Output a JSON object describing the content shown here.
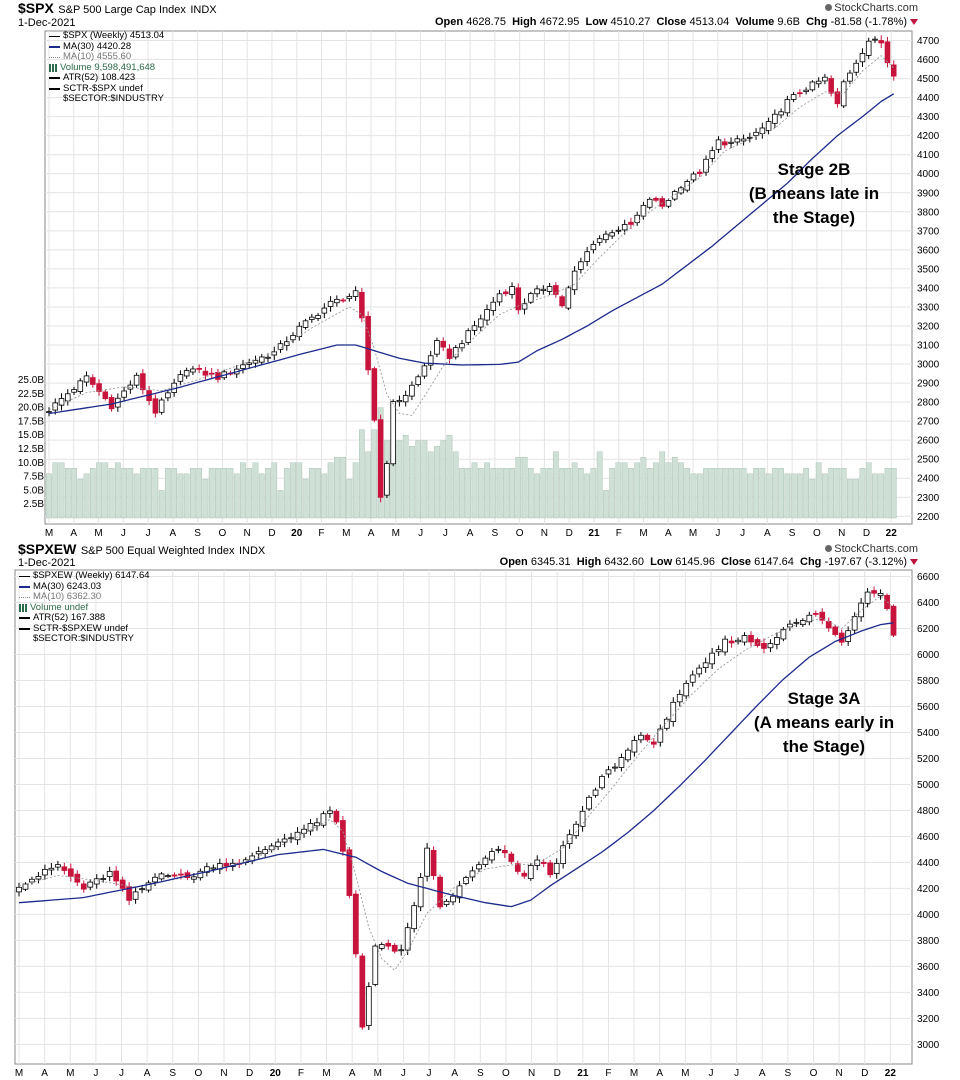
{
  "charts": [
    {
      "ticker": "$SPX",
      "name": "S&P 500 Large Cap Index",
      "exchange": "INDX",
      "date": "1-Dec-2021",
      "brand": "StockCharts.com",
      "ohlc": {
        "open_label": "Open",
        "open": "4628.75",
        "high_label": "High",
        "high": "4672.95",
        "low_label": "Low",
        "low": "4510.27",
        "close_label": "Close",
        "close": "4513.04",
        "volume_label": "Volume",
        "volume": "9.6B",
        "chg_label": "Chg",
        "chg": "-81.58 (-1.78%)"
      },
      "legend": {
        "title": "$SPX (Weekly) 4513.04",
        "ma30": "MA(30) 4420.28",
        "ma10": "MA(10) 4555.60",
        "volume": "Volume 9,598,491,648",
        "atr": "ATR(52) 108.423",
        "sctr": "SCTR-$SPX undef",
        "sector": "$SECTOR:$INDUSTRY"
      },
      "annotation": [
        "Stage 2B",
        "(B means late in",
        "the Stage)"
      ]
    },
    {
      "ticker": "$SPXEW",
      "name": "S&P 500 Equal Weighted Index",
      "exchange": "INDX",
      "date": "1-Dec-2021",
      "brand": "StockCharts.com",
      "ohlc": {
        "open_label": "Open",
        "open": "6345.31",
        "high_label": "High",
        "high": "6432.60",
        "low_label": "Low",
        "low": "6145.96",
        "close_label": "Close",
        "close": "6147.64",
        "chg_label": "Chg",
        "chg": "-197.67 (-3.12%)"
      },
      "legend": {
        "title": "$SPXEW (Weekly) 6147.64",
        "ma30": "MA(30) 6243.03",
        "ma10": "MA(10) 6362.30",
        "volume": "Volume undef",
        "atr": "ATR(52) 167.388",
        "sctr": "SCTR-$SPXEW undef",
        "sector": "$SECTOR:$INDUSTRY"
      },
      "annotation": [
        "Stage 3A",
        "(A means early in",
        "the Stage)"
      ]
    }
  ],
  "colors": {
    "up": "#ffffff",
    "down": "#c8143c",
    "ma30": "#1c2a8c",
    "ma10": "#9a9a9a",
    "volume": "#cfe0d7",
    "volume_edge": "#9fb9aa",
    "grid": "#e4e4e4"
  },
  "chart_data": [
    {
      "type": "candlestick",
      "title": "$SPX S&P 500 Large Cap Index (Weekly)",
      "x_tick_labels": [
        "M",
        "A",
        "M",
        "J",
        "J",
        "A",
        "S",
        "O",
        "N",
        "D",
        "20",
        "F",
        "M",
        "A",
        "M",
        "J",
        "J",
        "A",
        "S",
        "O",
        "N",
        "D",
        "21",
        "F",
        "M",
        "A",
        "M",
        "J",
        "J",
        "A",
        "S",
        "O",
        "N",
        "D",
        "22"
      ],
      "y_ticks": [
        2200,
        2300,
        2400,
        2500,
        2600,
        2700,
        2800,
        2900,
        3000,
        3100,
        3200,
        3300,
        3400,
        3500,
        3600,
        3700,
        3800,
        3900,
        4000,
        4100,
        4200,
        4300,
        4400,
        4500,
        4600,
        4700
      ],
      "ylim": [
        2170,
        4750
      ],
      "volume_ticks": [
        "2.5B",
        "5.0B",
        "7.5B",
        "10.0B",
        "12.5B",
        "15.0B",
        "17.5B",
        "20.0B",
        "22.5B",
        "25.0B"
      ],
      "volume_ylim": [
        0,
        25
      ],
      "anchors_close": [
        [
          0,
          2760
        ],
        [
          6,
          2930
        ],
        [
          10,
          2780
        ],
        [
          14,
          2930
        ],
        [
          17,
          2750
        ],
        [
          22,
          2980
        ],
        [
          27,
          2930
        ],
        [
          32,
          3010
        ],
        [
          36,
          3060
        ],
        [
          40,
          3190
        ],
        [
          45,
          3320
        ],
        [
          49,
          3370
        ],
        [
          50,
          3230
        ],
        [
          51,
          2970
        ],
        [
          52,
          2710
        ],
        [
          53,
          2300
        ],
        [
          54,
          2490
        ],
        [
          55,
          2790
        ],
        [
          57,
          2840
        ],
        [
          59,
          2930
        ],
        [
          62,
          3110
        ],
        [
          64,
          3040
        ],
        [
          66,
          3120
        ],
        [
          69,
          3240
        ],
        [
          72,
          3370
        ],
        [
          74,
          3400
        ],
        [
          75,
          3290
        ],
        [
          77,
          3360
        ],
        [
          80,
          3420
        ],
        [
          82,
          3310
        ],
        [
          84,
          3480
        ],
        [
          87,
          3640
        ],
        [
          90,
          3700
        ],
        [
          93,
          3730
        ],
        [
          96,
          3870
        ],
        [
          98,
          3830
        ],
        [
          101,
          3940
        ],
        [
          104,
          4010
        ],
        [
          107,
          4170
        ],
        [
          109,
          4160
        ],
        [
          112,
          4190
        ],
        [
          115,
          4260
        ],
        [
          118,
          4380
        ],
        [
          121,
          4450
        ],
        [
          124,
          4500
        ],
        [
          125,
          4420
        ],
        [
          126,
          4360
        ],
        [
          127,
          4480
        ],
        [
          129,
          4590
        ],
        [
          131,
          4700
        ],
        [
          133,
          4690
        ],
        [
          134,
          4590
        ],
        [
          135,
          4513
        ]
      ],
      "ma30_series": [
        [
          0,
          2740
        ],
        [
          10,
          2790
        ],
        [
          20,
          2870
        ],
        [
          30,
          2960
        ],
        [
          40,
          3050
        ],
        [
          46,
          3100
        ],
        [
          49,
          3100
        ],
        [
          52,
          3070
        ],
        [
          56,
          3030
        ],
        [
          60,
          3005
        ],
        [
          66,
          2995
        ],
        [
          72,
          2998
        ],
        [
          75,
          3010
        ],
        [
          78,
          3070
        ],
        [
          82,
          3130
        ],
        [
          86,
          3200
        ],
        [
          90,
          3280
        ],
        [
          94,
          3350
        ],
        [
          98,
          3420
        ],
        [
          102,
          3520
        ],
        [
          106,
          3620
        ],
        [
          110,
          3730
        ],
        [
          114,
          3840
        ],
        [
          118,
          3950
        ],
        [
          122,
          4080
        ],
        [
          126,
          4200
        ],
        [
          130,
          4300
        ],
        [
          133,
          4380
        ],
        [
          135,
          4420
        ]
      ],
      "ma10_series": [
        [
          0,
          2760
        ],
        [
          6,
          2850
        ],
        [
          12,
          2880
        ],
        [
          18,
          2860
        ],
        [
          24,
          2920
        ],
        [
          30,
          2990
        ],
        [
          36,
          3060
        ],
        [
          42,
          3190
        ],
        [
          48,
          3300
        ],
        [
          50,
          3260
        ],
        [
          52,
          3080
        ],
        [
          54,
          2840
        ],
        [
          56,
          2740
        ],
        [
          58,
          2730
        ],
        [
          60,
          2830
        ],
        [
          63,
          2990
        ],
        [
          67,
          3110
        ],
        [
          72,
          3260
        ],
        [
          76,
          3320
        ],
        [
          80,
          3360
        ],
        [
          84,
          3420
        ],
        [
          88,
          3560
        ],
        [
          92,
          3690
        ],
        [
          96,
          3800
        ],
        [
          100,
          3890
        ],
        [
          104,
          3980
        ],
        [
          108,
          4120
        ],
        [
          112,
          4180
        ],
        [
          116,
          4240
        ],
        [
          120,
          4350
        ],
        [
          124,
          4430
        ],
        [
          127,
          4420
        ],
        [
          130,
          4540
        ],
        [
          133,
          4620
        ],
        [
          135,
          4556
        ]
      ],
      "volume_billions": [
        8,
        10,
        10,
        9,
        9,
        7,
        8,
        9,
        10,
        10,
        9,
        10,
        9,
        9,
        8,
        9,
        9,
        9,
        5,
        9,
        9,
        8,
        8,
        9,
        9,
        7,
        9,
        9,
        9,
        9,
        8,
        10,
        9,
        10,
        8,
        9,
        10,
        5,
        9,
        10,
        10,
        7,
        9,
        9,
        8,
        10,
        11,
        11,
        7,
        10,
        16,
        12,
        16,
        20,
        14,
        12,
        14,
        15,
        13,
        14,
        14,
        12,
        13,
        14,
        15,
        12,
        9,
        9,
        10,
        9,
        10,
        9,
        9,
        9,
        9,
        11,
        11,
        9,
        8,
        9,
        9,
        12,
        9,
        9,
        10,
        9,
        8,
        9,
        12,
        5,
        9,
        10,
        10,
        9,
        10,
        11,
        9,
        10,
        12,
        10,
        11,
        10,
        9,
        8,
        8,
        9,
        9,
        9,
        9,
        9,
        9,
        9,
        8,
        9,
        9,
        8,
        9,
        9,
        8,
        8,
        8,
        9,
        7,
        10,
        8,
        9,
        9,
        9,
        7,
        7,
        9,
        10,
        8,
        8,
        9,
        9
      ]
    },
    {
      "type": "candlestick",
      "title": "$SPXEW S&P 500 Equal Weighted Index (Weekly)",
      "x_tick_labels": [
        "M",
        "A",
        "M",
        "J",
        "J",
        "A",
        "S",
        "O",
        "N",
        "D",
        "20",
        "F",
        "M",
        "A",
        "M",
        "J",
        "J",
        "A",
        "S",
        "O",
        "N",
        "D",
        "21",
        "F",
        "M",
        "A",
        "M",
        "J",
        "J",
        "A",
        "S",
        "O",
        "N",
        "D",
        "22"
      ],
      "y_ticks": [
        3000,
        3200,
        3400,
        3600,
        3800,
        4000,
        4200,
        4400,
        4600,
        4800,
        5000,
        5200,
        5400,
        5600,
        5800,
        6000,
        6200,
        6400,
        6600
      ],
      "ylim": [
        2880,
        6650
      ],
      "anchors_close": [
        [
          0,
          4230
        ],
        [
          3,
          4300
        ],
        [
          6,
          4380
        ],
        [
          10,
          4200
        ],
        [
          14,
          4320
        ],
        [
          17,
          4110
        ],
        [
          22,
          4330
        ],
        [
          26,
          4280
        ],
        [
          30,
          4380
        ],
        [
          35,
          4410
        ],
        [
          40,
          4560
        ],
        [
          45,
          4680
        ],
        [
          48,
          4790
        ],
        [
          49,
          4700
        ],
        [
          50,
          4480
        ],
        [
          51,
          4150
        ],
        [
          52,
          3700
        ],
        [
          53,
          3150
        ],
        [
          54,
          3450
        ],
        [
          55,
          3750
        ],
        [
          57,
          3750
        ],
        [
          59,
          3710
        ],
        [
          61,
          4050
        ],
        [
          63,
          4520
        ],
        [
          65,
          4050
        ],
        [
          67,
          4150
        ],
        [
          70,
          4330
        ],
        [
          74,
          4510
        ],
        [
          76,
          4400
        ],
        [
          78,
          4290
        ],
        [
          80,
          4430
        ],
        [
          82,
          4320
        ],
        [
          85,
          4600
        ],
        [
          88,
          4880
        ],
        [
          90,
          5050
        ],
        [
          93,
          5200
        ],
        [
          96,
          5400
        ],
        [
          98,
          5290
        ],
        [
          101,
          5640
        ],
        [
          104,
          5820
        ],
        [
          107,
          5990
        ],
        [
          109,
          6100
        ],
        [
          112,
          6130
        ],
        [
          115,
          6050
        ],
        [
          118,
          6200
        ],
        [
          121,
          6260
        ],
        [
          123,
          6320
        ],
        [
          125,
          6200
        ],
        [
          127,
          6100
        ],
        [
          129,
          6300
        ],
        [
          131,
          6500
        ],
        [
          133,
          6480
        ],
        [
          134,
          6345
        ],
        [
          135,
          6148
        ]
      ],
      "ma30_series": [
        [
          0,
          4090
        ],
        [
          10,
          4130
        ],
        [
          20,
          4230
        ],
        [
          30,
          4340
        ],
        [
          40,
          4460
        ],
        [
          47,
          4500
        ],
        [
          52,
          4440
        ],
        [
          56,
          4330
        ],
        [
          60,
          4240
        ],
        [
          66,
          4160
        ],
        [
          72,
          4090
        ],
        [
          76,
          4060
        ],
        [
          79,
          4110
        ],
        [
          82,
          4220
        ],
        [
          86,
          4350
        ],
        [
          90,
          4480
        ],
        [
          94,
          4630
        ],
        [
          98,
          4800
        ],
        [
          102,
          4990
        ],
        [
          106,
          5190
        ],
        [
          110,
          5400
        ],
        [
          114,
          5610
        ],
        [
          118,
          5810
        ],
        [
          122,
          5980
        ],
        [
          126,
          6100
        ],
        [
          130,
          6180
        ],
        [
          133,
          6230
        ],
        [
          135,
          6243
        ]
      ],
      "ma10_series": [
        [
          0,
          4220
        ],
        [
          6,
          4300
        ],
        [
          12,
          4260
        ],
        [
          18,
          4210
        ],
        [
          24,
          4270
        ],
        [
          30,
          4340
        ],
        [
          36,
          4420
        ],
        [
          42,
          4570
        ],
        [
          48,
          4730
        ],
        [
          50,
          4640
        ],
        [
          52,
          4300
        ],
        [
          54,
          3900
        ],
        [
          56,
          3660
        ],
        [
          58,
          3570
        ],
        [
          60,
          3720
        ],
        [
          63,
          4010
        ],
        [
          67,
          4200
        ],
        [
          72,
          4350
        ],
        [
          76,
          4380
        ],
        [
          80,
          4390
        ],
        [
          84,
          4510
        ],
        [
          88,
          4760
        ],
        [
          92,
          5000
        ],
        [
          96,
          5250
        ],
        [
          100,
          5480
        ],
        [
          104,
          5700
        ],
        [
          108,
          5890
        ],
        [
          112,
          6030
        ],
        [
          116,
          6140
        ],
        [
          120,
          6230
        ],
        [
          124,
          6280
        ],
        [
          127,
          6200
        ],
        [
          130,
          6340
        ],
        [
          133,
          6450
        ],
        [
          135,
          6362
        ]
      ]
    }
  ]
}
